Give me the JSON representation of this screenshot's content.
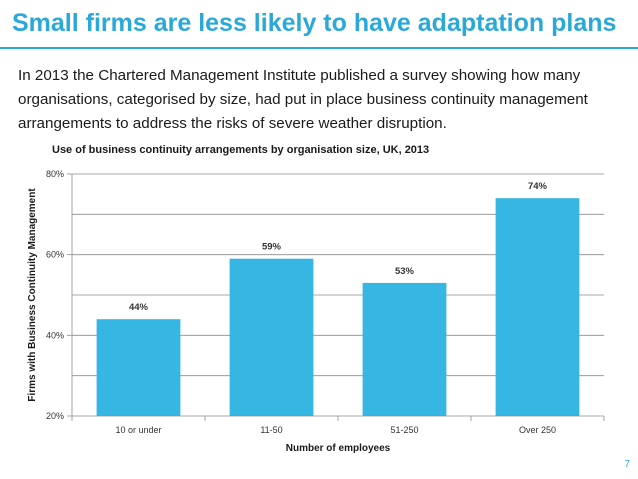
{
  "slide": {
    "title": "Small firms are less likely to have adaptation plans",
    "intro": "In 2013 the Chartered Management Institute published a survey showing how many organisations, categorised by size, had put in place business continuity management arrangements to address the risks of severe weather disruption.",
    "page_number": "7"
  },
  "colors": {
    "accent": "#2aa9d9",
    "bar": "#35b6e3"
  },
  "chart_data": {
    "type": "bar",
    "title": "Use of business continuity arrangements by organisation size, UK, 2013",
    "xlabel": "Number of employees",
    "ylabel": "Firms with Business Continuity Management",
    "categories": [
      "10 or under",
      "11-50",
      "51-250",
      "Over 250"
    ],
    "values": [
      44,
      59,
      53,
      74
    ],
    "value_labels": [
      "44%",
      "59%",
      "53%",
      "74%"
    ],
    "ylim": [
      20,
      80
    ],
    "major_ticks": [
      20,
      40,
      60,
      80
    ],
    "major_tick_labels": [
      "20%",
      "40%",
      "60%",
      "80%"
    ],
    "minor_gridlines": [
      30,
      50,
      70
    ],
    "grid": true
  }
}
